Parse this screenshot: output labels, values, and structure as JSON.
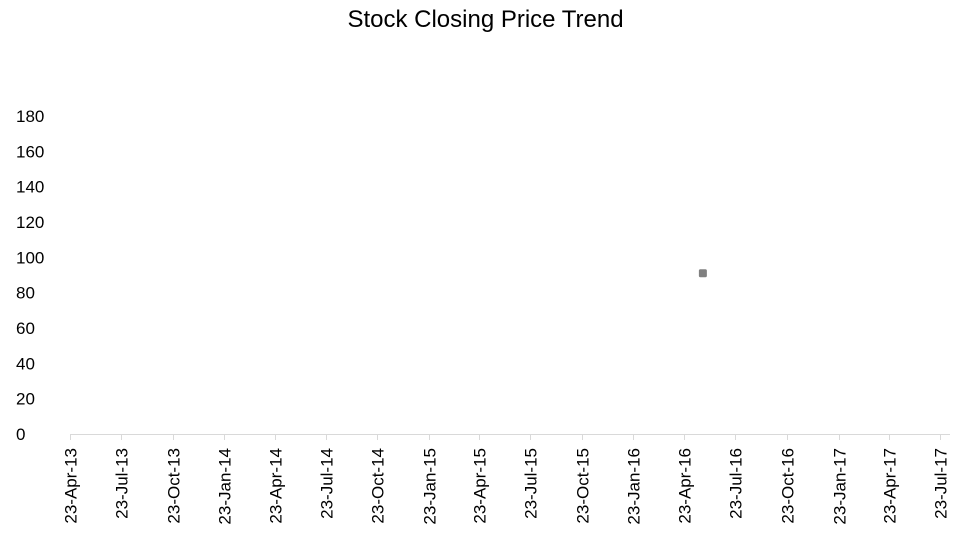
{
  "chart_data": {
    "type": "scatter",
    "title": "Stock Closing Price Trend",
    "xlabel": "",
    "ylabel": "",
    "ylim": [
      0,
      180
    ],
    "yticks": [
      0,
      20,
      40,
      60,
      80,
      100,
      120,
      140,
      160,
      180
    ],
    "xlim": [
      "2013-04-23",
      "2017-07-23"
    ],
    "xticks": [
      {
        "date": "2013-04-23",
        "label": "23-Apr-13"
      },
      {
        "date": "2013-07-23",
        "label": "23-Jul-13"
      },
      {
        "date": "2013-10-23",
        "label": "23-Oct-13"
      },
      {
        "date": "2014-01-23",
        "label": "23-Jan-14"
      },
      {
        "date": "2014-04-23",
        "label": "23-Apr-14"
      },
      {
        "date": "2014-07-23",
        "label": "23-Jul-14"
      },
      {
        "date": "2014-10-23",
        "label": "23-Oct-14"
      },
      {
        "date": "2015-01-23",
        "label": "23-Jan-15"
      },
      {
        "date": "2015-04-23",
        "label": "23-Apr-15"
      },
      {
        "date": "2015-07-23",
        "label": "23-Jul-15"
      },
      {
        "date": "2015-10-23",
        "label": "23-Oct-15"
      },
      {
        "date": "2016-01-23",
        "label": "23-Jan-16"
      },
      {
        "date": "2016-04-23",
        "label": "23-Apr-16"
      },
      {
        "date": "2016-07-23",
        "label": "23-Jul-16"
      },
      {
        "date": "2016-10-23",
        "label": "23-Oct-16"
      },
      {
        "date": "2017-01-23",
        "label": "23-Jan-17"
      },
      {
        "date": "2017-04-23",
        "label": "23-Apr-17"
      },
      {
        "date": "2017-07-23",
        "label": "23-Jul-17"
      }
    ],
    "series": [
      {
        "points": [
          {
            "x": "2016-05-26",
            "y": 91
          }
        ],
        "color": "#808080",
        "marker": "square"
      }
    ],
    "grid": false,
    "legend": "none",
    "axis_color": "#d9d9d9"
  }
}
